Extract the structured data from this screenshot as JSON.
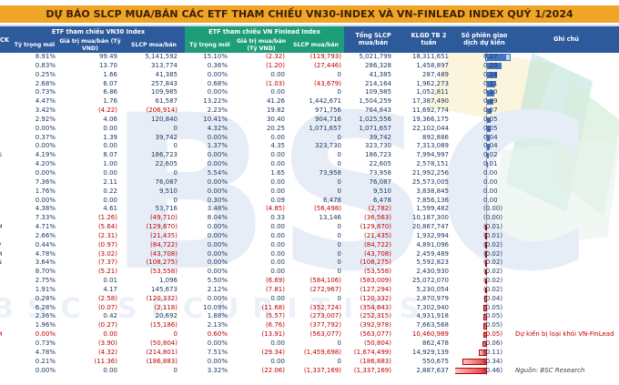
{
  "title": "DỰ BÁO SLCP MUA/BÁN CÁC ETF THAM CHIẾU VN30-INDEX VÀ VN-FINLEAD INDEX QUÝ 1/2024",
  "watermark": {
    "big": "BSC",
    "small": "BSC SECURITIES"
  },
  "colors": {
    "title_bg": "#F0A527",
    "header_blue": "#2D5A9B",
    "header_green": "#1E9E78",
    "negative_text": "#C00000",
    "positive_text": "#1F3864",
    "bar_positive": "#4472C4",
    "bar_negative": "#E23B3B",
    "selection_fill": "#BDD7EE",
    "selection_border": "#2E75B6"
  },
  "table": {
    "headers": {
      "ck": "CK",
      "vn30_group": "ETF tham chiếu VN30 Index",
      "finlead_group": "ETF tham chiếu VN Finlead Index",
      "ty_trong": "Tỷ trọng mới",
      "gia_tri": "Giá trị mua/bán (Tỷ VND)",
      "slcp": "SLCP mua/bán",
      "tong_slcp": "Tổng SLCP mua/bán",
      "klgd": "KLGD TB 2 tuần",
      "so_phien": "Số phiên giao dịch dự kiến",
      "ghi_chu": "Ghi chú"
    },
    "max_bar_value": 0.46,
    "rows": [
      {
        "ck": "",
        "v30": [
          "8.91%",
          "99.49",
          "5,141,592"
        ],
        "fl": [
          "15.10%",
          "(2.32)",
          "(119,793)"
        ],
        "tong": "5,021,799",
        "klgd": "18,311,651",
        "phien": "0.27",
        "sel": true
      },
      {
        "ck": "",
        "v30": [
          "0.83%",
          "13.70",
          "313,774"
        ],
        "fl": [
          "0.36%",
          "(1.20)",
          "(27,446)"
        ],
        "tong": "286,328",
        "klgd": "1,458,897",
        "phien": "0.20"
      },
      {
        "ck": "",
        "v30": [
          "0.25%",
          "1.66",
          "41,385"
        ],
        "fl": [
          "0.00%",
          "0.00",
          "0"
        ],
        "tong": "41,385",
        "klgd": "287,489",
        "phien": "0.14"
      },
      {
        "ck": "",
        "v30": [
          "2.68%",
          "6.07",
          "257,843"
        ],
        "fl": [
          "0.68%",
          "(1.03)",
          "(43,679)"
        ],
        "tong": "214,164",
        "klgd": "1,962,273",
        "phien": "0.11"
      },
      {
        "ck": "",
        "v30": [
          "0.73%",
          "6.86",
          "109,985"
        ],
        "fl": [
          "0.00%",
          "0.00",
          "0"
        ],
        "tong": "109,985",
        "klgd": "1,052,811",
        "phien": "0.10"
      },
      {
        "ck": "",
        "v30": [
          "4.47%",
          "1.76",
          "61,587"
        ],
        "fl": [
          "13.22%",
          "41.26",
          "1,442,671"
        ],
        "tong": "1,504,259",
        "klgd": "17,387,490",
        "phien": "0.09"
      },
      {
        "ck": "",
        "v30": [
          "3.42%",
          "(4.22)",
          "(206,914)"
        ],
        "fl": [
          "2.23%",
          "19.82",
          "971,756"
        ],
        "tong": "764,843",
        "klgd": "11,692,774",
        "phien": "0.07"
      },
      {
        "ck": "",
        "v30": [
          "2.92%",
          "4.06",
          "120,840"
        ],
        "fl": [
          "10.41%",
          "30.40",
          "904,716"
        ],
        "tong": "1,025,556",
        "klgd": "19,366,175",
        "phien": "0.05"
      },
      {
        "ck": "",
        "v30": [
          "0.00%",
          "0.00",
          "0"
        ],
        "fl": [
          "4.32%",
          "20.25",
          "1,071,657"
        ],
        "tong": "1,071,657",
        "klgd": "22,102,044",
        "phien": "0.05"
      },
      {
        "ck": "",
        "v30": [
          "0.37%",
          "1.39",
          "39,742"
        ],
        "fl": [
          "0.00%",
          "0.00",
          "0"
        ],
        "tong": "39,742",
        "klgd": "892,886",
        "phien": "0.04"
      },
      {
        "ck": "",
        "v30": [
          "0.00%",
          "0.00",
          "0"
        ],
        "fl": [
          "1.37%",
          "4.35",
          "323,730"
        ],
        "tong": "323,730",
        "klgd": "7,313,089",
        "phien": "0.04"
      },
      {
        "ck": "G",
        "v30": [
          "4.19%",
          "8.07",
          "186,723"
        ],
        "fl": [
          "0.00%",
          "0.00",
          "0"
        ],
        "tong": "186,723",
        "klgd": "7,994,997",
        "phien": "0.02"
      },
      {
        "ck": "",
        "v30": [
          "4.20%",
          "1.00",
          "22,605"
        ],
        "fl": [
          "0.00%",
          "0.00",
          "0"
        ],
        "tong": "22,605",
        "klgd": "2,578,151",
        "phien": "0.01"
      },
      {
        "ck": "",
        "v30": [
          "0.00%",
          "0.00",
          "0"
        ],
        "fl": [
          "5.54%",
          "1.65",
          "73,958"
        ],
        "tong": "73,958",
        "klgd": "21,992,256",
        "phien": "0.00"
      },
      {
        "ck": "",
        "v30": [
          "7.36%",
          "2.11",
          "76,087"
        ],
        "fl": [
          "0.00%",
          "0.00",
          "0"
        ],
        "tong": "76,087",
        "klgd": "25,573,005",
        "phien": "0.00"
      },
      {
        "ck": "",
        "v30": [
          "1.76%",
          "0.22",
          "9,510"
        ],
        "fl": [
          "0.00%",
          "0.00",
          "0"
        ],
        "tong": "9,510",
        "klgd": "3,838,845",
        "phien": "0.00"
      },
      {
        "ck": "",
        "v30": [
          "0.00%",
          "0.00",
          "0"
        ],
        "fl": [
          "0.30%",
          "0.09",
          "6,478"
        ],
        "tong": "6,478",
        "klgd": "7,856,136",
        "phien": "0.00"
      },
      {
        "ck": "",
        "v30": [
          "4.38%",
          "4.61",
          "53,716"
        ],
        "fl": [
          "3.48%",
          "(4.85)",
          "(56,498)"
        ],
        "tong": "(2,782)",
        "klgd": "1,599,482",
        "phien": "(0.00)"
      },
      {
        "ck": "",
        "v30": [
          "7.33%",
          "(1.26)",
          "(49,710)"
        ],
        "fl": [
          "8.04%",
          "0.33",
          "13,146"
        ],
        "tong": "(36,563)",
        "klgd": "10,187,300",
        "phien": "(0.00)"
      },
      {
        "ck": "M",
        "v30": [
          "4.71%",
          "(5.64)",
          "(129,870)"
        ],
        "fl": [
          "0.00%",
          "0.00",
          "0"
        ],
        "tong": "(129,870)",
        "klgd": "20,867,747",
        "phien": "(0.01)"
      },
      {
        "ck": "",
        "v30": [
          "2.66%",
          "(2.31)",
          "(21,435)"
        ],
        "fl": [
          "0.00%",
          "0.00",
          "0"
        ],
        "tong": "(21,435)",
        "klgd": "1,932,994",
        "phien": "(0.01)"
      },
      {
        "ck": "V",
        "v30": [
          "0.44%",
          "(0.97)",
          "(84,722)"
        ],
        "fl": [
          "0.00%",
          "0.00",
          "0"
        ],
        "tong": "(84,722)",
        "klgd": "4,891,096",
        "phien": "(0.02)"
      },
      {
        "ck": "M",
        "v30": [
          "4.78%",
          "(3.02)",
          "(43,708)"
        ],
        "fl": [
          "0.00%",
          "0.00",
          "0"
        ],
        "tong": "(43,708)",
        "klgd": "2,459,489",
        "phien": "(0.02)"
      },
      {
        "ck": "N",
        "v30": [
          "3.64%",
          "(7.37)",
          "(108,275)"
        ],
        "fl": [
          "0.00%",
          "0.00",
          "0"
        ],
        "tong": "(108,275)",
        "klgd": "5,592,823",
        "phien": "(0.02)"
      },
      {
        "ck": "",
        "v30": [
          "8.70%",
          "(5.21)",
          "(53,558)"
        ],
        "fl": [
          "0.00%",
          "0.00",
          "0"
        ],
        "tong": "(53,558)",
        "klgd": "2,430,930",
        "phien": "(0.02)"
      },
      {
        "ck": "",
        "v30": [
          "2.75%",
          "0.01",
          "1,096"
        ],
        "fl": [
          "5.50%",
          "(6.69)",
          "(584,106)"
        ],
        "tong": "(583,009)",
        "klgd": "25,072,070",
        "phien": "(0.02)"
      },
      {
        "ck": "",
        "v30": [
          "1.91%",
          "4.17",
          "145,673"
        ],
        "fl": [
          "2.12%",
          "(7.81)",
          "(272,967)"
        ],
        "tong": "(127,294)",
        "klgd": "5,230,054",
        "phien": "(0.02)"
      },
      {
        "ck": "",
        "v30": [
          "0.28%",
          "(2.58)",
          "(120,332)"
        ],
        "fl": [
          "0.00%",
          "0.00",
          "0"
        ],
        "tong": "(120,332)",
        "klgd": "2,870,979",
        "phien": "(0.04)"
      },
      {
        "ck": "",
        "v30": [
          "6.28%",
          "(0.07)",
          "(2,118)"
        ],
        "fl": [
          "10.09%",
          "(11.68)",
          "(352,724)"
        ],
        "tong": "(354,843)",
        "klgd": "7,302,940",
        "phien": "(0.05)"
      },
      {
        "ck": "",
        "v30": [
          "2.36%",
          "0.42",
          "20,692"
        ],
        "fl": [
          "1.88%",
          "(5.57)",
          "(273,007)"
        ],
        "tong": "(252,315)",
        "klgd": "4,931,918",
        "phien": "(0.05)"
      },
      {
        "ck": "",
        "v30": [
          "1.96%",
          "(0.27)",
          "(15,186)"
        ],
        "fl": [
          "2.13%",
          "(6.76)",
          "(377,792)"
        ],
        "tong": "(392,978)",
        "klgd": "7,663,568",
        "phien": "(0.05)"
      },
      {
        "ck": "M",
        "v30": [
          "0.00%",
          "0.00",
          "0"
        ],
        "fl": [
          "0.60%",
          "(13.91)",
          "(563,077)"
        ],
        "tong": "(563,077)",
        "klgd": "10,460,989",
        "phien": "(0.05)",
        "red": true,
        "note": "Dự kiến bị loại khỏi VN-FinLead",
        "note_type": "warning"
      },
      {
        "ck": "",
        "v30": [
          "0.73%",
          "(3.90)",
          "(50,804)"
        ],
        "fl": [
          "0.00%",
          "0.00",
          "0"
        ],
        "tong": "(50,804)",
        "klgd": "862,478",
        "phien": "(0.06)"
      },
      {
        "ck": "",
        "v30": [
          "4.78%",
          "(4.32)",
          "(214,801)"
        ],
        "fl": [
          "7.51%",
          "(29.34)",
          "(1,459,698)"
        ],
        "tong": "(1,674,499)",
        "klgd": "14,929,139",
        "phien": "(0.11)"
      },
      {
        "ck": "",
        "v30": [
          "0.21%",
          "(11.36)",
          "(186,883)"
        ],
        "fl": [
          "0.00%",
          "0.00",
          "0"
        ],
        "tong": "(186,883)",
        "klgd": "550,675",
        "phien": "(0.34)"
      },
      {
        "ck": "",
        "v30": [
          "0.00%",
          "0.00",
          "0"
        ],
        "fl": [
          "3.32%",
          "(22.06)",
          "(1,337,169)"
        ],
        "tong": "(1,337,169)",
        "klgd": "2,887,637",
        "phien": "(0.46)",
        "note": "Nguồn: BSC Research",
        "note_type": "source"
      }
    ]
  }
}
